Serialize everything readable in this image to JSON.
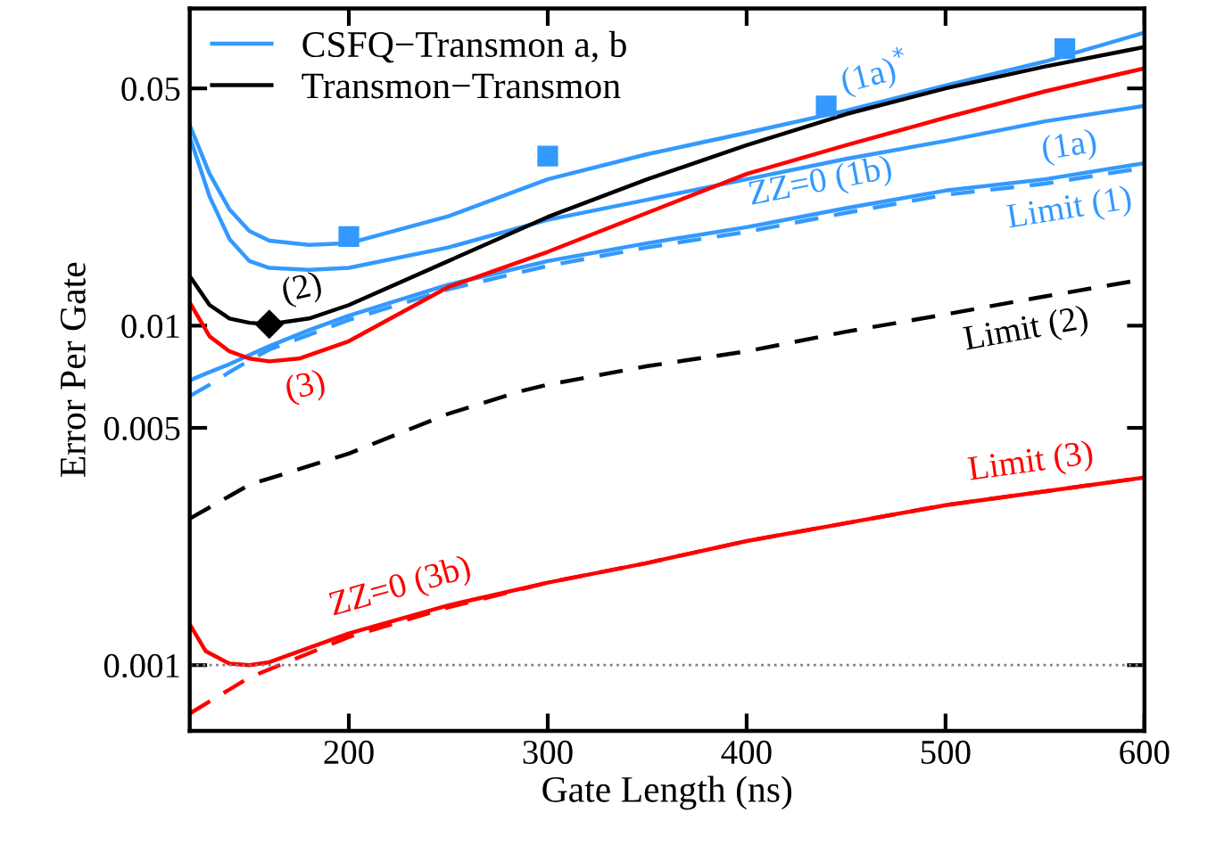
{
  "chart_data": {
    "type": "line",
    "xlabel": "Gate Length (ns)",
    "ylabel": "Error Per Gate",
    "log": "y",
    "xlim": [
      120,
      600
    ],
    "xticks": [
      200,
      300,
      400,
      500,
      600
    ],
    "ylim": [
      0.00064,
      0.086
    ],
    "yticks": [
      0.001,
      0.005,
      0.01,
      0.05
    ],
    "grid": false,
    "legend": "top left",
    "marker": "none",
    "series": [
      {
        "name": "CSFQ−Transmon a, b",
        "color": "#3399ff",
        "x": [
          120,
          130,
          140,
          150,
          160,
          180,
          200,
          250,
          300,
          350,
          400,
          450,
          500,
          550,
          600
        ],
        "values": [
          0.039,
          0.028,
          0.022,
          0.019,
          0.0178,
          0.0173,
          0.0175,
          0.021,
          0.027,
          0.032,
          0.037,
          0.043,
          0.051,
          0.06,
          0.073
        ]
      },
      {
        "color": "#3399ff",
        "x": [
          120,
          130,
          140,
          150,
          160,
          180,
          200,
          250,
          300,
          350,
          400,
          450,
          500,
          550,
          600
        ],
        "values": [
          0.036,
          0.024,
          0.018,
          0.0155,
          0.0148,
          0.0146,
          0.0148,
          0.017,
          0.0205,
          0.0235,
          0.027,
          0.031,
          0.035,
          0.04,
          0.0444
        ]
      },
      {
        "color": "#3399ff",
        "x": [
          120,
          130,
          140,
          150,
          160,
          180,
          200,
          250,
          300,
          350,
          400,
          450,
          500,
          550,
          600
        ],
        "values": [
          0.0069,
          0.0073,
          0.0077,
          0.0082,
          0.0087,
          0.0097,
          0.0107,
          0.0132,
          0.0155,
          0.0175,
          0.0195,
          0.0222,
          0.025,
          0.027,
          0.0301
        ]
      },
      {
        "color": "#3399ff",
        "line_style": "dashed",
        "x": [
          120,
          130,
          140,
          150,
          160,
          180,
          200,
          250,
          300,
          350,
          400,
          450,
          500,
          550,
          600
        ],
        "values": [
          0.0062,
          0.0067,
          0.0073,
          0.0079,
          0.0085,
          0.0094,
          0.0104,
          0.0128,
          0.015,
          0.017,
          0.0189,
          0.0215,
          0.0243,
          0.0262,
          0.0292
        ]
      },
      {
        "name": "Transmon−Transmon",
        "color": "#000000",
        "x": [
          120,
          130,
          140,
          150,
          160,
          180,
          200,
          250,
          300,
          350,
          400,
          450,
          500,
          550,
          600
        ],
        "values": [
          0.014,
          0.0115,
          0.0105,
          0.0102,
          0.0101,
          0.0105,
          0.0115,
          0.0155,
          0.0209,
          0.027,
          0.034,
          0.042,
          0.05,
          0.058,
          0.0662
        ]
      },
      {
        "color": "#000000",
        "line_style": "dashed",
        "x": [
          120,
          150,
          200,
          250,
          286,
          300,
          350,
          400,
          450,
          500,
          550,
          600
        ],
        "values": [
          0.0027,
          0.0034,
          0.0042,
          0.0055,
          0.0064,
          0.0067,
          0.0076,
          0.0084,
          0.0096,
          0.0108,
          0.0122,
          0.0137
        ]
      },
      {
        "color": "#ff0000",
        "x": [
          120,
          130,
          140,
          150,
          160,
          175,
          200,
          250,
          300,
          350,
          400,
          450,
          500,
          550,
          600
        ],
        "values": [
          0.0117,
          0.0093,
          0.0084,
          0.008,
          0.00785,
          0.008,
          0.009,
          0.013,
          0.0165,
          0.0215,
          0.028,
          0.034,
          0.041,
          0.049,
          0.0573
        ]
      },
      {
        "color": "#ff0000",
        "line_style": "dashed",
        "x": [
          120,
          150,
          200,
          250,
          300,
          350,
          400,
          450,
          500,
          550,
          600
        ],
        "values": [
          0.00072,
          0.00092,
          0.00121,
          0.00148,
          0.00175,
          0.002,
          0.00232,
          0.00262,
          0.00296,
          0.00325,
          0.00357
        ]
      },
      {
        "color": "#ff0000",
        "x": [
          120,
          128,
          140,
          150,
          160,
          200,
          250,
          300,
          350,
          400,
          450,
          500,
          550,
          600
        ],
        "values": [
          0.00132,
          0.0011,
          0.00101,
          0.001,
          0.00102,
          0.00124,
          0.0015,
          0.00175,
          0.002,
          0.00232,
          0.00262,
          0.00296,
          0.00325,
          0.00357
        ]
      },
      {
        "type": "scatter",
        "marker": "square",
        "color": "#3399ff",
        "x": [
          200,
          300,
          440,
          560
        ],
        "values": [
          0.0183,
          0.0316,
          0.0444,
          0.0655
        ]
      },
      {
        "type": "scatter",
        "marker": "diamond",
        "color": "#000000",
        "x": [
          160
        ],
        "values": [
          0.0101
        ]
      }
    ],
    "ref_lines": [
      {
        "axis": "y",
        "value": 0.001,
        "color": "#808080",
        "line_style": "dotted"
      }
    ],
    "annotations": [
      {
        "text": "(1a)$^{*}$",
        "x": 468,
        "y": 0.0457
      },
      {
        "text": "(2)",
        "x": 180,
        "y": 0.0105
      },
      {
        "text": "(1a)",
        "x": 560,
        "y": 0.0409
      },
      {
        "text": "ZZ=0 (1b)",
        "x": 440,
        "y": 0.0216
      },
      {
        "text": "Limit (1)",
        "x": 560,
        "y": 0.0268
      },
      {
        "text": "Limit (2)",
        "x": 538,
        "y": 0.0118
      },
      {
        "text": "(3)",
        "x": 175,
        "y": 0.008
      },
      {
        "text": "Limit (3)",
        "x": 545,
        "y": 0.00322
      },
      {
        "text": "ZZ=0 (3b)",
        "x": 230,
        "y": 0.00139
      }
    ]
  }
}
